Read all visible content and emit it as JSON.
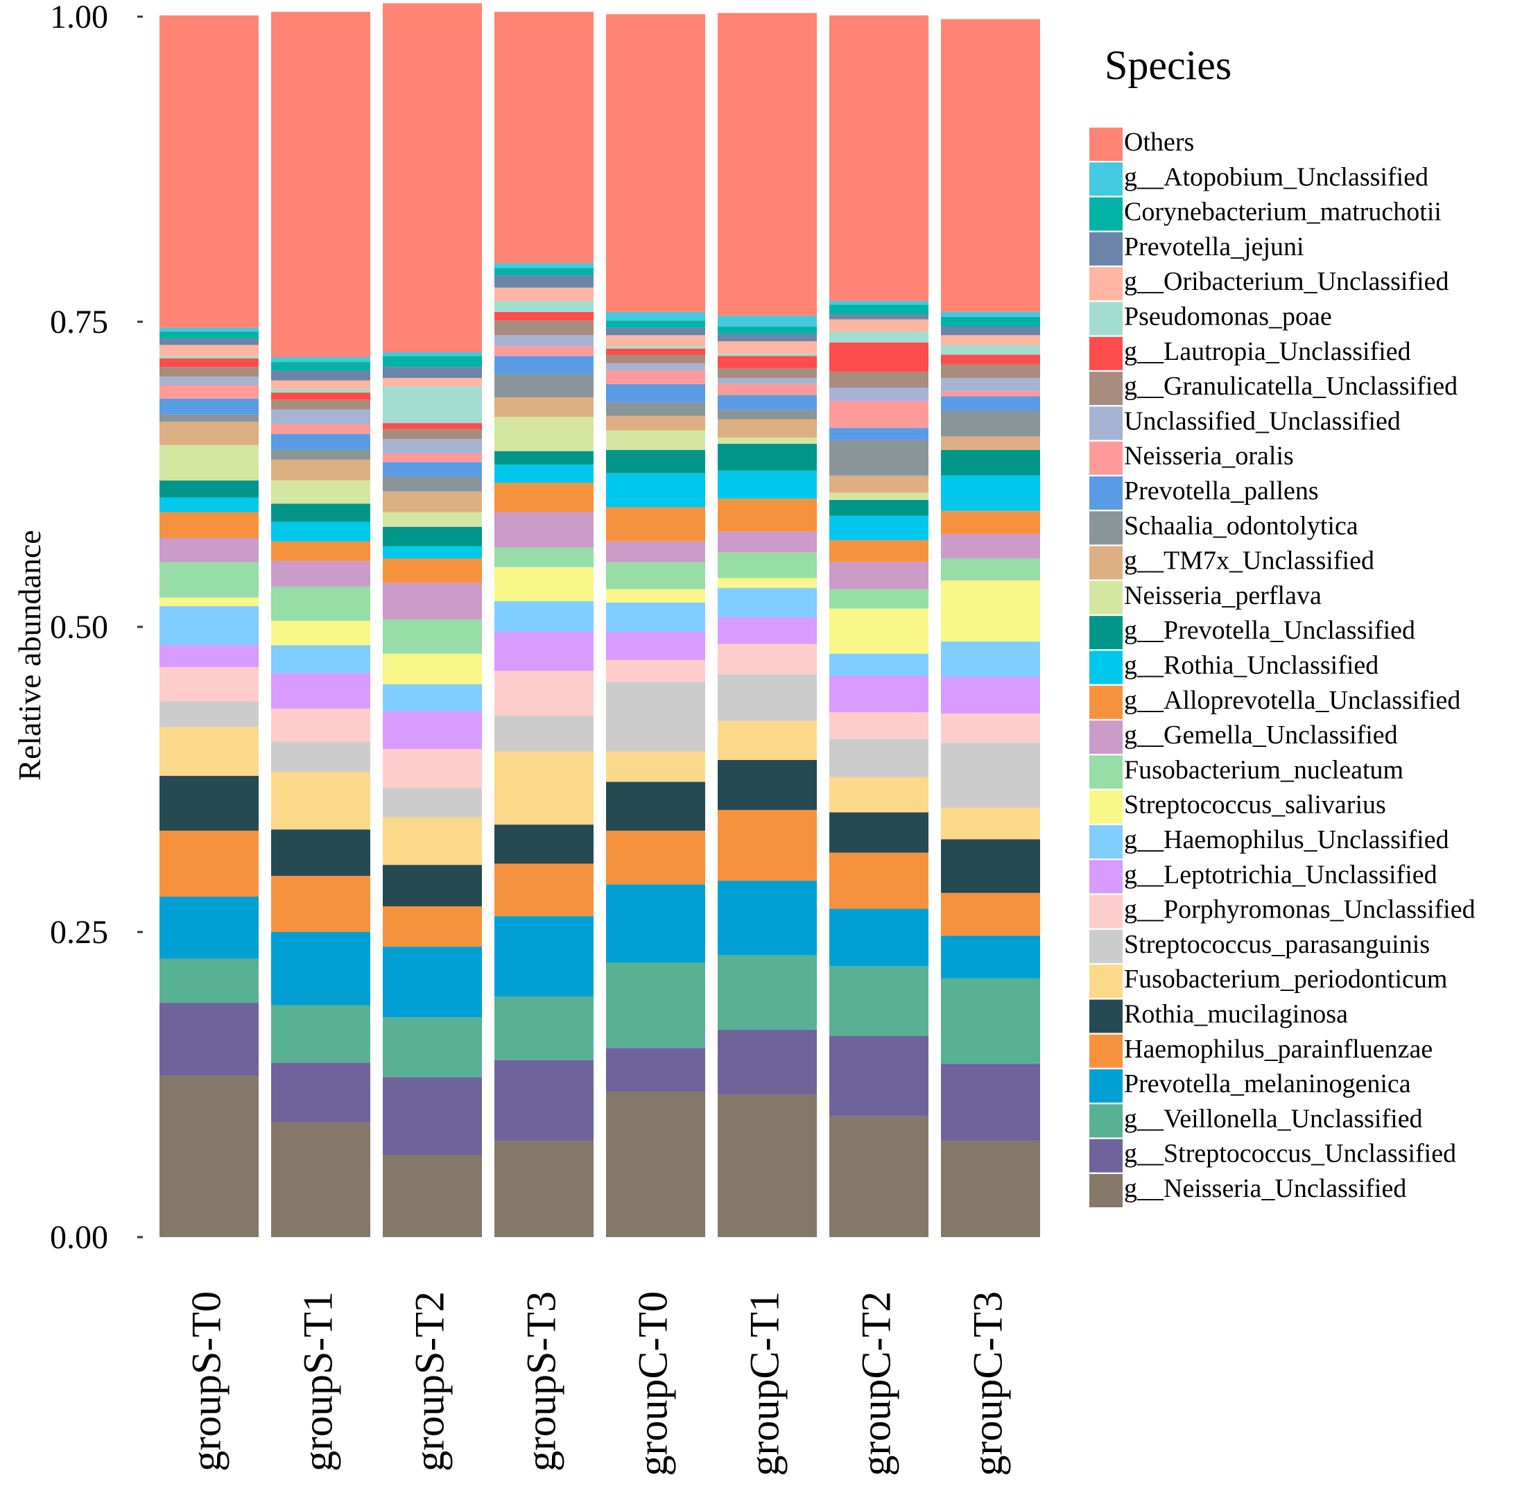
{
  "chart_data": {
    "type": "bar",
    "stacked": true,
    "title": "",
    "xlabel": "",
    "ylabel": "Relative abundance",
    "ylim": [
      0,
      1
    ],
    "yticks": [
      "0.00",
      "0.25",
      "0.50",
      "0.75",
      "1.00"
    ],
    "ytick_values": [
      0,
      0.25,
      0.5,
      0.75,
      1.0
    ],
    "legend_title": "Species",
    "legend_position": "right",
    "categories": [
      "groupS-T0",
      "groupS-T1",
      "groupS-T2",
      "groupS-T3",
      "groupC-T0",
      "groupC-T1",
      "groupC-T2",
      "groupC-T3"
    ],
    "series": [
      {
        "name": "g__Neisseria_Unclassified",
        "color": "#857868",
        "values": [
          0.132,
          0.094,
          0.067,
          0.079,
          0.119,
          0.117,
          0.099,
          0.079
        ]
      },
      {
        "name": "g__Streptococcus_Unclassified",
        "color": "#6E649B",
        "values": [
          0.06,
          0.049,
          0.064,
          0.066,
          0.036,
          0.053,
          0.066,
          0.063
        ]
      },
      {
        "name": "g__Veillonella_Unclassified",
        "color": "#59B193",
        "values": [
          0.036,
          0.047,
          0.049,
          0.052,
          0.07,
          0.061,
          0.057,
          0.07
        ]
      },
      {
        "name": "Prevotella_melaninogenica",
        "color": "#00A0D5",
        "values": [
          0.051,
          0.06,
          0.058,
          0.066,
          0.064,
          0.061,
          0.047,
          0.035
        ]
      },
      {
        "name": "Haemophilus_parainfluenzae",
        "color": "#F6923E",
        "values": [
          0.054,
          0.046,
          0.033,
          0.043,
          0.044,
          0.058,
          0.046,
          0.035
        ]
      },
      {
        "name": "Rothia_mucilaginosa",
        "color": "#264A53",
        "values": [
          0.045,
          0.038,
          0.034,
          0.032,
          0.04,
          0.041,
          0.033,
          0.044
        ]
      },
      {
        "name": "Fusobacterium_periodonticum",
        "color": "#FCD88A",
        "values": [
          0.04,
          0.047,
          0.039,
          0.06,
          0.025,
          0.032,
          0.029,
          0.026
        ]
      },
      {
        "name": "Streptococcus_parasanguinis",
        "color": "#CCCCCC",
        "values": [
          0.021,
          0.025,
          0.024,
          0.029,
          0.057,
          0.038,
          0.031,
          0.053
        ]
      },
      {
        "name": "g__Porphyromonas_Unclassified",
        "color": "#FFCCCC",
        "values": [
          0.028,
          0.027,
          0.032,
          0.037,
          0.018,
          0.025,
          0.022,
          0.024
        ]
      },
      {
        "name": "g__Leptotrichia_Unclassified",
        "color": "#D89BFF",
        "values": [
          0.018,
          0.029,
          0.031,
          0.032,
          0.023,
          0.022,
          0.03,
          0.03
        ]
      },
      {
        "name": "g__Haemophilus_Unclassified",
        "color": "#80CDFF",
        "values": [
          0.032,
          0.023,
          0.022,
          0.025,
          0.024,
          0.024,
          0.018,
          0.029
        ]
      },
      {
        "name": "Streptococcus_salivarius",
        "color": "#F9F788",
        "values": [
          0.007,
          0.02,
          0.025,
          0.028,
          0.011,
          0.008,
          0.037,
          0.05
        ]
      },
      {
        "name": "Fusobacterium_nucleatum",
        "color": "#97DDA6",
        "values": [
          0.029,
          0.028,
          0.028,
          0.016,
          0.022,
          0.021,
          0.016,
          0.018
        ]
      },
      {
        "name": "g__Gemella_Unclassified",
        "color": "#CB9BC9",
        "values": [
          0.02,
          0.021,
          0.03,
          0.029,
          0.017,
          0.017,
          0.022,
          0.02
        ]
      },
      {
        "name": "g__Alloprevotella_Unclassified",
        "color": "#F6923E",
        "values": [
          0.021,
          0.016,
          0.02,
          0.024,
          0.028,
          0.027,
          0.018,
          0.019
        ]
      },
      {
        "name": "g__Rothia_Unclassified",
        "color": "#00C8EC",
        "values": [
          0.012,
          0.016,
          0.01,
          0.015,
          0.028,
          0.023,
          0.02,
          0.029
        ]
      },
      {
        "name": "g__Prevotella_Unclassified",
        "color": "#00978A",
        "values": [
          0.014,
          0.015,
          0.016,
          0.011,
          0.019,
          0.022,
          0.013,
          0.021
        ]
      },
      {
        "name": "Neisseria_perflava",
        "color": "#D4E6A1",
        "values": [
          0.029,
          0.019,
          0.012,
          0.028,
          0.016,
          0.005,
          0.006,
          0.0
        ]
      },
      {
        "name": "g__TM7x_Unclassified",
        "color": "#DDAF83",
        "values": [
          0.019,
          0.017,
          0.017,
          0.016,
          0.012,
          0.015,
          0.014,
          0.011
        ]
      },
      {
        "name": "Schaalia_odontolytica",
        "color": "#8A959A",
        "values": [
          0.006,
          0.008,
          0.012,
          0.019,
          0.011,
          0.008,
          0.029,
          0.021
        ]
      },
      {
        "name": "Prevotella_pallens",
        "color": "#5A9BE6",
        "values": [
          0.013,
          0.013,
          0.012,
          0.015,
          0.015,
          0.012,
          0.01,
          0.012
        ]
      },
      {
        "name": "Neisseria_oralis",
        "color": "#FF9A9A",
        "values": [
          0.011,
          0.008,
          0.007,
          0.008,
          0.011,
          0.009,
          0.022,
          0.004
        ]
      },
      {
        "name": "Unclassified_Unclassified",
        "color": "#A7B3D3",
        "values": [
          0.007,
          0.012,
          0.012,
          0.009,
          0.006,
          0.005,
          0.011,
          0.011
        ]
      },
      {
        "name": "g__Granulicatella_Unclassified",
        "color": "#A88C7E",
        "values": [
          0.008,
          0.008,
          0.008,
          0.012,
          0.007,
          0.008,
          0.013,
          0.011
        ]
      },
      {
        "name": "g__Lautropia_Unclassified",
        "color": "#FD4C4C",
        "values": [
          0.007,
          0.006,
          0.005,
          0.007,
          0.005,
          0.01,
          0.024,
          0.008
        ]
      },
      {
        "name": "Pseudomonas_poae",
        "color": "#A2DDD0",
        "values": [
          0.002,
          0.003,
          0.03,
          0.009,
          0.002,
          0.002,
          0.009,
          0.008
        ]
      },
      {
        "name": "g__Oribacterium_Unclassified",
        "color": "#FFB5A0",
        "values": [
          0.009,
          0.007,
          0.007,
          0.011,
          0.009,
          0.01,
          0.01,
          0.008
        ]
      },
      {
        "name": "Prevotella_jejuni",
        "color": "#6C83AA",
        "values": [
          0.005,
          0.008,
          0.009,
          0.01,
          0.006,
          0.006,
          0.004,
          0.007
        ]
      },
      {
        "name": "Corynebacterium_matruchotii",
        "color": "#00B3A6",
        "values": [
          0.006,
          0.007,
          0.009,
          0.006,
          0.006,
          0.006,
          0.008,
          0.008
        ]
      },
      {
        "name": "g__Atopobium_Unclassified",
        "color": "#43C9E0",
        "values": [
          0.003,
          0.004,
          0.003,
          0.004,
          0.007,
          0.009,
          0.003,
          0.004
        ]
      },
      {
        "name": "Others",
        "color": "#FF8473",
        "values": [
          0.256,
          0.283,
          0.286,
          0.206,
          0.244,
          0.248,
          0.234,
          0.24
        ]
      }
    ]
  }
}
